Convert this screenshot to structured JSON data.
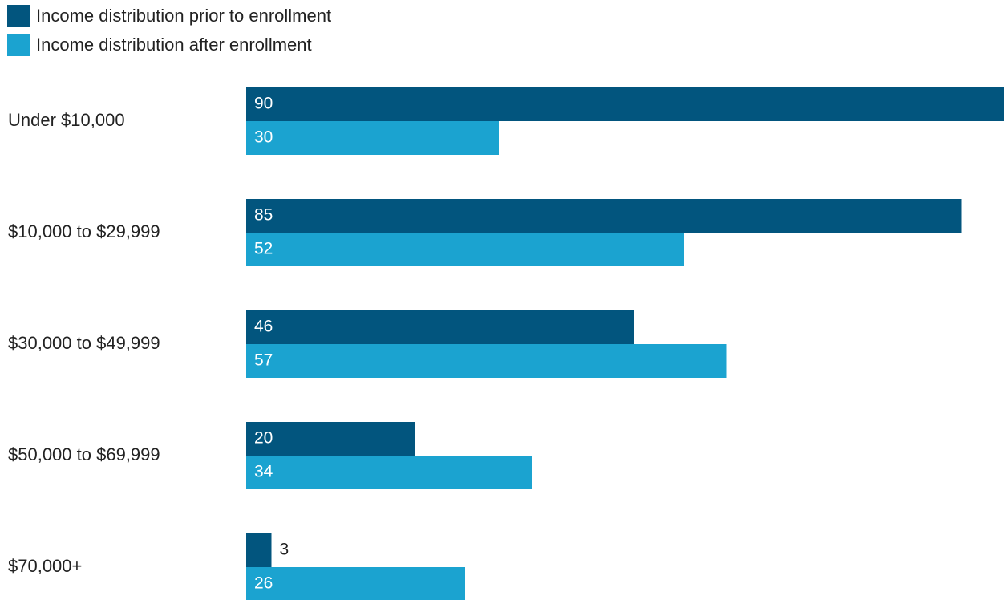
{
  "chart_data": {
    "type": "bar",
    "orientation": "horizontal",
    "categories": [
      "Under $10,000",
      "$10,000 to $29,999",
      "$30,000 to $49,999",
      "$50,000 to $69,999",
      "$70,000+"
    ],
    "series": [
      {
        "name": "Income distribution prior to enrollment",
        "values": [
          90,
          85,
          46,
          20,
          3
        ],
        "color": "#02557e"
      },
      {
        "name": "Income distribution after enrollment",
        "values": [
          30,
          52,
          57,
          34,
          26
        ],
        "color": "#1ba3d0"
      }
    ],
    "xlim": [
      0,
      90
    ],
    "grid": false,
    "legend_position": "top-left",
    "data_labels": true
  }
}
